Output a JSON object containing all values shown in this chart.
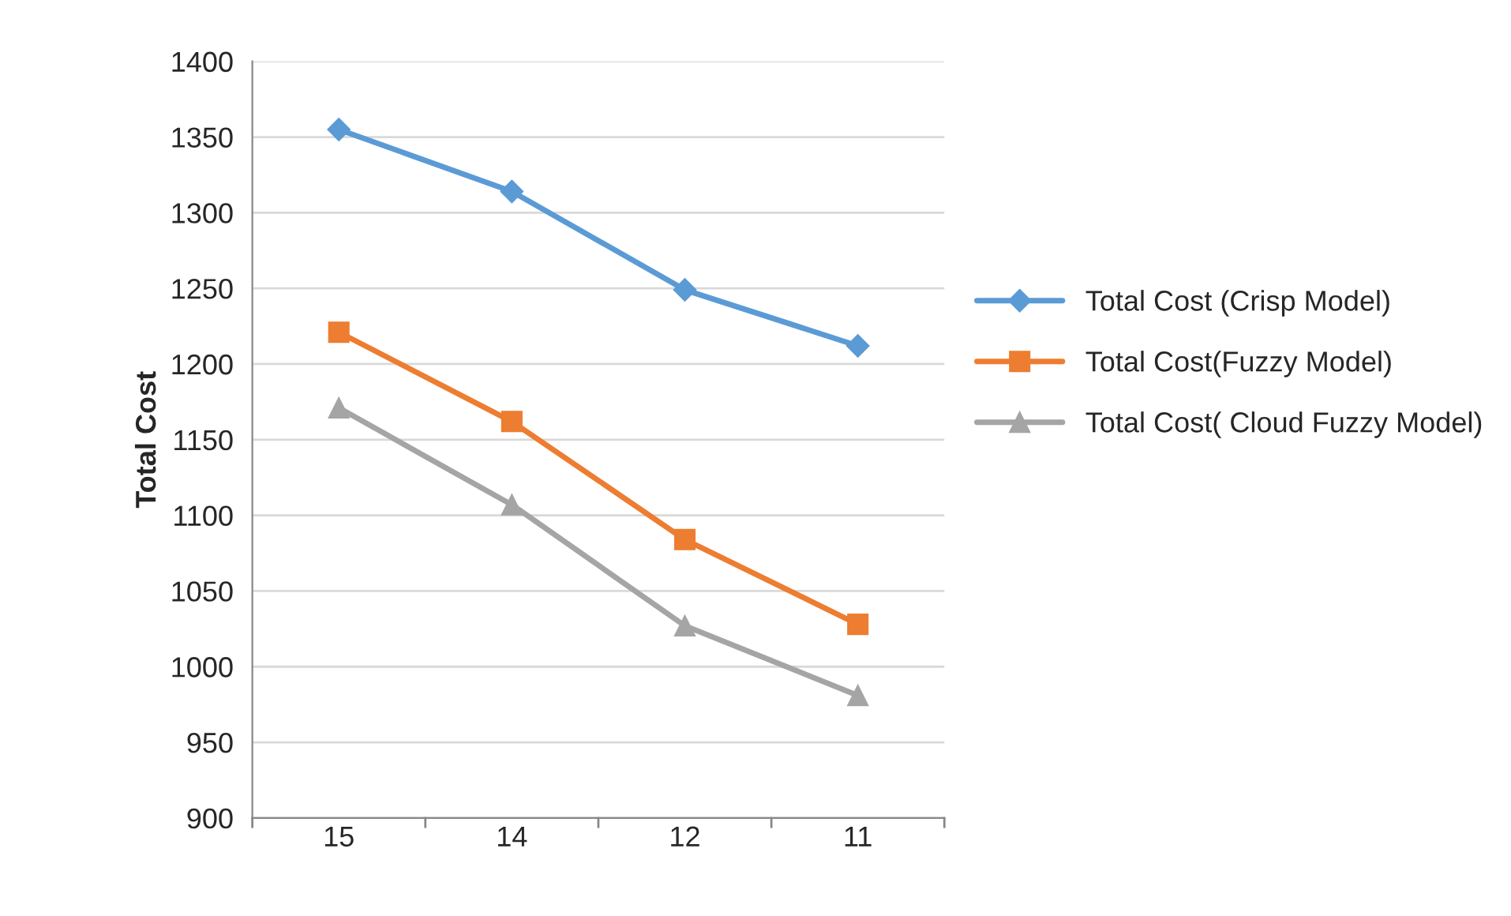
{
  "chart_data": {
    "type": "line",
    "ylabel": "Total Cost",
    "categories": [
      "15",
      "14",
      "12",
      "11"
    ],
    "series": [
      {
        "name": "Total Cost (Crisp Model)",
        "color": "#5b9bd5",
        "marker": "diamond",
        "values": [
          1355,
          1314,
          1249,
          1212
        ]
      },
      {
        "name": "Total Cost(Fuzzy Model)",
        "color": "#ed7d31",
        "marker": "square",
        "values": [
          1221,
          1162,
          1084,
          1028
        ]
      },
      {
        "name": "Total Cost( Cloud Fuzzy Model)",
        "color": "#a5a5a5",
        "marker": "triangle",
        "values": [
          1171,
          1107,
          1027,
          981
        ]
      }
    ],
    "ylim": [
      900,
      1400
    ],
    "yticks": [
      900,
      950,
      1000,
      1050,
      1100,
      1150,
      1200,
      1250,
      1300,
      1350,
      1400
    ],
    "grid": "y",
    "legend": "right",
    "line_style": "solid"
  }
}
